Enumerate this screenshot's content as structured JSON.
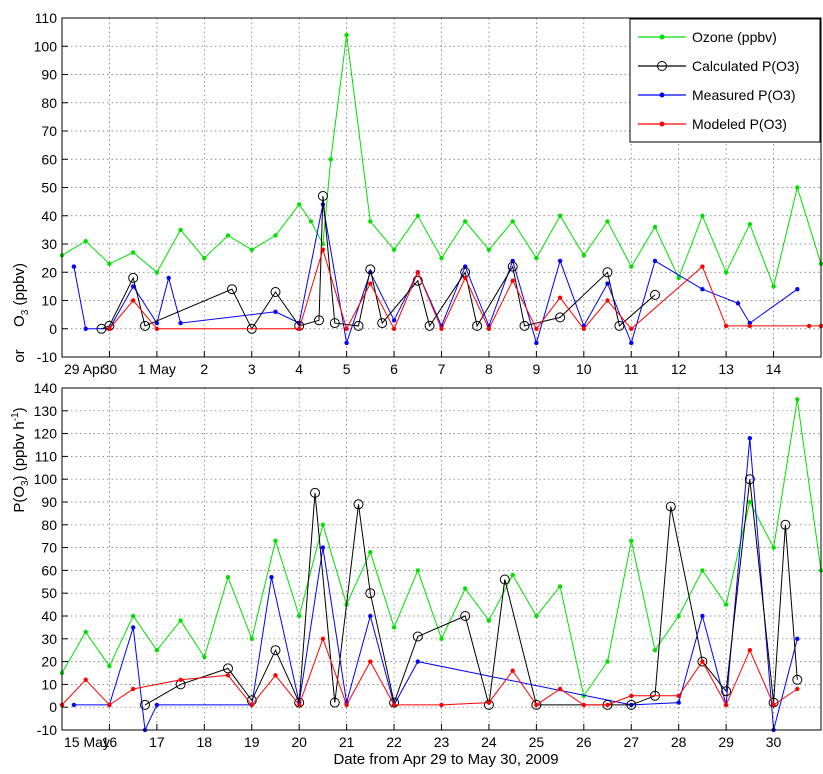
{
  "figure": {
    "xlabel": "Date from Apr 29 to May 30, 2009",
    "ylabel_top": "O3 (ppbv)",
    "ylabel_mid": "or",
    "ylabel_bottom": "P(O3) (ppbv h-1)",
    "legend": [
      {
        "label": "Ozone (ppbv)",
        "color": "#00e000",
        "marker": "dot"
      },
      {
        "label": "Calculated P(O3)",
        "color": "#000000",
        "marker": "circle"
      },
      {
        "label": "Measured P(O3)",
        "color": "#0000ff",
        "marker": "dot"
      },
      {
        "label": "Modeled P(O3)",
        "color": "#ff0000",
        "marker": "dot"
      }
    ]
  },
  "chart_data": [
    {
      "type": "line",
      "panel": "top",
      "xlim": [
        "2009-04-29",
        "2009-05-15"
      ],
      "ylim": [
        -10,
        110
      ],
      "yticks": [
        -10,
        0,
        10,
        20,
        30,
        40,
        50,
        60,
        70,
        80,
        90,
        100,
        110
      ],
      "xticks": [
        "29 Apr",
        "30",
        "1 May",
        "2",
        "3",
        "4",
        "5",
        "6",
        "7",
        "8",
        "9",
        "10",
        "11",
        "12",
        "13",
        "14"
      ],
      "grid": true,
      "legend_position": "top-right",
      "series": [
        {
          "name": "Ozone (ppbv)",
          "color": "#00e000",
          "x": [
            "2009-04-29",
            "2009-04-29T12",
            "2009-04-30",
            "2009-04-30T12",
            "2009-05-01",
            "2009-05-01T12",
            "2009-05-02",
            "2009-05-02T12",
            "2009-05-03",
            "2009-05-03T12",
            "2009-05-04",
            "2009-05-04T06",
            "2009-05-04T12",
            "2009-05-04T16",
            "2009-05-05",
            "2009-05-05T12",
            "2009-05-06",
            "2009-05-06T12",
            "2009-05-07",
            "2009-05-07T12",
            "2009-05-08",
            "2009-05-08T12",
            "2009-05-09",
            "2009-05-09T12",
            "2009-05-10",
            "2009-05-10T12",
            "2009-05-11",
            "2009-05-11T12",
            "2009-05-12",
            "2009-05-12T12",
            "2009-05-13",
            "2009-05-13T12",
            "2009-05-14",
            "2009-05-14T12",
            "2009-05-15"
          ],
          "values": [
            26,
            31,
            23,
            27,
            20,
            35,
            25,
            33,
            28,
            33,
            44,
            38,
            30,
            60,
            104,
            38,
            28,
            40,
            25,
            38,
            28,
            38,
            25,
            40,
            26,
            38,
            22,
            36,
            18,
            40,
            20,
            37,
            15,
            50,
            23
          ]
        },
        {
          "name": "Calculated P(O3)",
          "color": "#000000",
          "x": [
            "2009-04-29T20",
            "2009-04-30",
            "2009-04-30T12",
            "2009-04-30T18",
            "2009-05-02T14",
            "2009-05-03",
            "2009-05-03T12",
            "2009-05-04",
            "2009-05-04T10",
            "2009-05-04T12",
            "2009-05-04T18",
            "2009-05-05T06",
            "2009-05-05T12",
            "2009-05-05T18",
            "2009-05-06T12",
            "2009-05-06T18",
            "2009-05-07T12",
            "2009-05-07T18",
            "2009-05-08T12",
            "2009-05-08T18",
            "2009-05-09T12",
            "2009-05-10T12",
            "2009-05-10T18",
            "2009-05-11T12"
          ],
          "values": [
            0,
            1,
            18,
            1,
            14,
            0,
            13,
            1,
            3,
            47,
            2,
            1,
            21,
            2,
            17,
            1,
            20,
            1,
            22,
            1,
            4,
            20,
            1,
            12
          ]
        },
        {
          "name": "Measured P(O3)",
          "color": "#0000ff",
          "x": [
            "2009-04-29T06",
            "2009-04-29T12",
            "2009-04-30",
            "2009-04-30T12",
            "2009-05-01",
            "2009-05-01T06",
            "2009-05-01T12",
            "2009-05-03T12",
            "2009-05-04",
            "2009-05-04T12",
            "2009-05-05",
            "2009-05-05T12",
            "2009-05-06",
            "2009-05-06T12",
            "2009-05-07",
            "2009-05-07T12",
            "2009-05-08",
            "2009-05-08T12",
            "2009-05-09",
            "2009-05-09T12",
            "2009-05-10",
            "2009-05-10T12",
            "2009-05-11",
            "2009-05-11T12",
            "2009-05-12T12",
            "2009-05-13T06",
            "2009-05-13T12",
            "2009-05-14T12"
          ],
          "values": [
            22,
            0,
            0,
            15,
            2,
            18,
            2,
            6,
            2,
            44,
            -5,
            20,
            3,
            20,
            1,
            22,
            1,
            24,
            -5,
            24,
            1,
            16,
            -5,
            24,
            14,
            9,
            2,
            14
          ]
        },
        {
          "name": "Modeled P(O3)",
          "color": "#ff0000",
          "x": [
            "2009-04-30",
            "2009-04-30T12",
            "2009-05-01",
            "2009-05-04",
            "2009-05-04T12",
            "2009-05-05",
            "2009-05-05T12",
            "2009-05-06",
            "2009-05-06T12",
            "2009-05-07",
            "2009-05-07T12",
            "2009-05-08",
            "2009-05-08T12",
            "2009-05-09",
            "2009-05-09T12",
            "2009-05-10",
            "2009-05-10T12",
            "2009-05-11",
            "2009-05-12T12",
            "2009-05-13",
            "2009-05-13T12",
            "2009-05-14T18",
            "2009-05-15"
          ],
          "values": [
            0,
            10,
            0,
            0,
            28,
            0,
            16,
            0,
            20,
            0,
            18,
            0,
            17,
            0,
            11,
            0,
            10,
            0,
            22,
            1,
            1,
            1,
            1
          ]
        }
      ]
    },
    {
      "type": "line",
      "panel": "bottom",
      "xlim": [
        "2009-05-15",
        "2009-05-31"
      ],
      "ylim": [
        -10,
        140
      ],
      "yticks": [
        -10,
        0,
        10,
        20,
        30,
        40,
        50,
        60,
        70,
        80,
        90,
        100,
        110,
        120,
        130,
        140
      ],
      "xticks": [
        "15 May",
        "16",
        "17",
        "18",
        "19",
        "20",
        "21",
        "22",
        "23",
        "24",
        "25",
        "26",
        "27",
        "28",
        "29",
        "30"
      ],
      "grid": true,
      "series": [
        {
          "name": "Ozone (ppbv)",
          "color": "#00e000",
          "x": [
            "2009-05-15",
            "2009-05-15T12",
            "2009-05-16",
            "2009-05-16T12",
            "2009-05-17",
            "2009-05-17T12",
            "2009-05-18",
            "2009-05-18T12",
            "2009-05-19",
            "2009-05-19T12",
            "2009-05-20",
            "2009-05-20T12",
            "2009-05-21",
            "2009-05-21T12",
            "2009-05-22",
            "2009-05-22T12",
            "2009-05-23",
            "2009-05-23T12",
            "2009-05-24",
            "2009-05-24T12",
            "2009-05-25",
            "2009-05-25T12",
            "2009-05-26",
            "2009-05-26T12",
            "2009-05-27",
            "2009-05-27T12",
            "2009-05-28",
            "2009-05-28T12",
            "2009-05-29",
            "2009-05-29T12",
            "2009-05-30",
            "2009-05-30T12",
            "2009-05-31"
          ],
          "values": [
            15,
            33,
            18,
            40,
            25,
            38,
            22,
            57,
            30,
            73,
            40,
            80,
            45,
            68,
            35,
            60,
            30,
            52,
            38,
            58,
            40,
            53,
            5,
            20,
            73,
            25,
            40,
            60,
            45,
            90,
            70,
            135,
            60
          ]
        },
        {
          "name": "Calculated P(O3)",
          "color": "#000000",
          "x": [
            "2009-05-16T18",
            "2009-05-17T12",
            "2009-05-18T12",
            "2009-05-19",
            "2009-05-19T12",
            "2009-05-20",
            "2009-05-20T08",
            "2009-05-20T18",
            "2009-05-21T06",
            "2009-05-21T12",
            "2009-05-22",
            "2009-05-22T12",
            "2009-05-23T12",
            "2009-05-24",
            "2009-05-24T08",
            "2009-05-25",
            "2009-05-26T12",
            "2009-05-27",
            "2009-05-27T12",
            "2009-05-27T20",
            "2009-05-28T12",
            "2009-05-29",
            "2009-05-29T12",
            "2009-05-30",
            "2009-05-30T06",
            "2009-05-30T12"
          ],
          "values": [
            1,
            10,
            17,
            3,
            25,
            2,
            94,
            2,
            89,
            50,
            2,
            31,
            40,
            1,
            56,
            1,
            1,
            1,
            5,
            88,
            20,
            7,
            100,
            2,
            80,
            12
          ]
        },
        {
          "name": "Measured P(O3)",
          "color": "#0000ff",
          "x": [
            "2009-05-15T06",
            "2009-05-16",
            "2009-05-16T12",
            "2009-05-16T18",
            "2009-05-17",
            "2009-05-19",
            "2009-05-19T10",
            "2009-05-20",
            "2009-05-20T12",
            "2009-05-21",
            "2009-05-21T12",
            "2009-05-22",
            "2009-05-22T12",
            "2009-05-27",
            "2009-05-28",
            "2009-05-28T12",
            "2009-05-29",
            "2009-05-29T12",
            "2009-05-30",
            "2009-05-30T12"
          ],
          "values": [
            1,
            1,
            35,
            -10,
            1,
            1,
            57,
            2,
            70,
            2,
            40,
            1,
            20,
            1,
            2,
            40,
            1,
            118,
            -10,
            30
          ]
        },
        {
          "name": "Modeled P(O3)",
          "color": "#ff0000",
          "x": [
            "2009-05-15",
            "2009-05-15T12",
            "2009-05-16",
            "2009-05-16T12",
            "2009-05-17T12",
            "2009-05-18T12",
            "2009-05-19",
            "2009-05-19T12",
            "2009-05-20",
            "2009-05-20T12",
            "2009-05-21",
            "2009-05-21T12",
            "2009-05-22",
            "2009-05-23",
            "2009-05-24",
            "2009-05-24T12",
            "2009-05-25",
            "2009-05-25T12",
            "2009-05-26",
            "2009-05-26T12",
            "2009-05-27",
            "2009-05-28",
            "2009-05-28T12",
            "2009-05-29",
            "2009-05-29T12",
            "2009-05-30",
            "2009-05-30T12"
          ],
          "values": [
            1,
            12,
            1,
            8,
            12,
            14,
            1,
            14,
            1,
            30,
            1,
            20,
            1,
            1,
            2,
            16,
            1,
            8,
            1,
            1,
            5,
            5,
            20,
            1,
            25,
            1,
            8
          ]
        }
      ]
    }
  ]
}
